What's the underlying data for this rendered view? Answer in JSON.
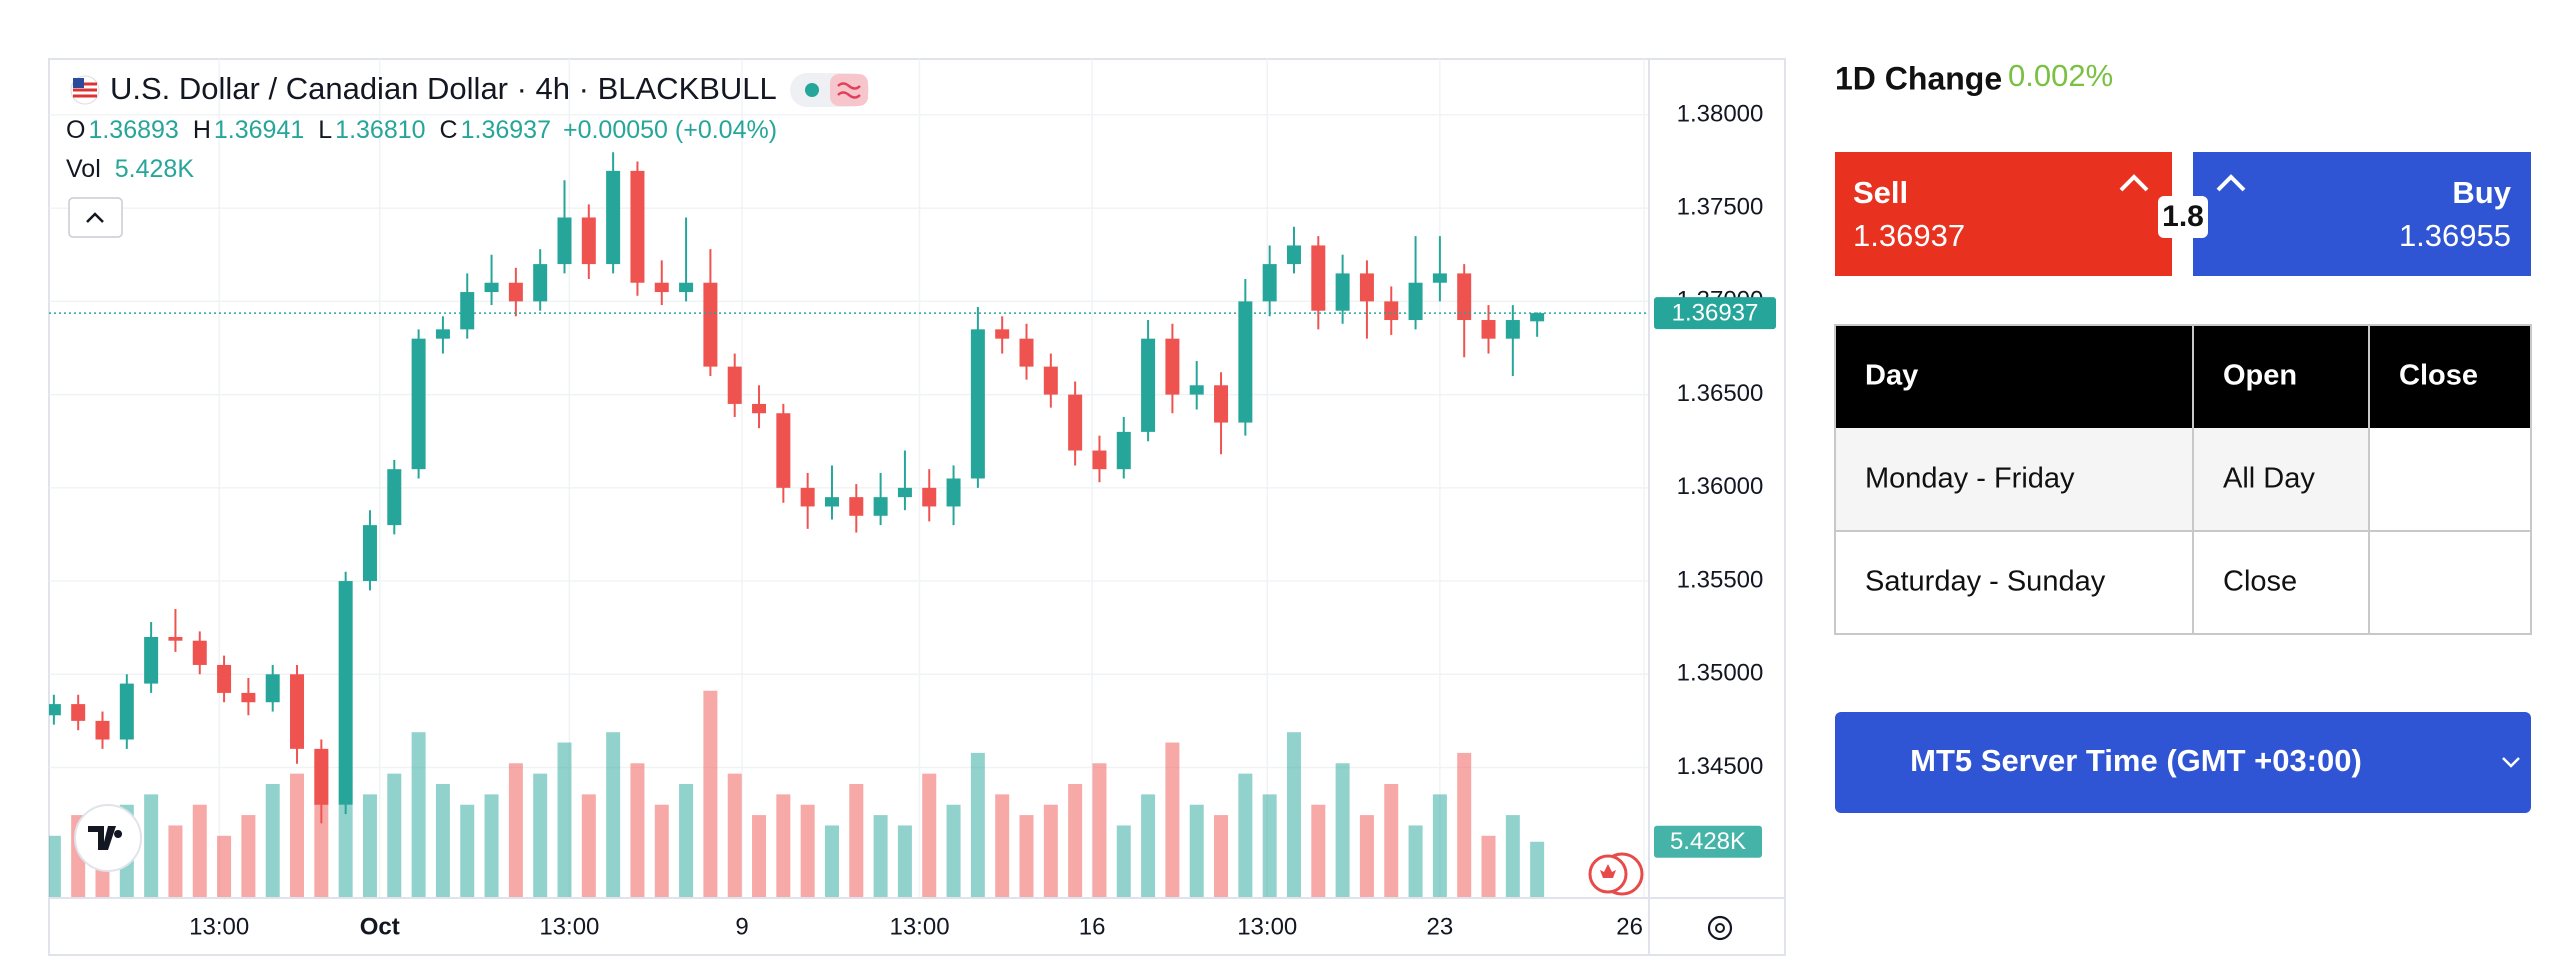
{
  "chart_data": {
    "type": "candlestick",
    "title": "U.S. Dollar / Canadian Dollar · 4h · BLACKBULL",
    "legend": {
      "open_label": "O",
      "open": "1.36893",
      "high_label": "H",
      "high": "1.36941",
      "low_label": "L",
      "low": "1.36810",
      "close_label": "C",
      "close": "1.36937",
      "change": "+0.00050 (+0.04%)"
    },
    "volume_label": "Vol",
    "volume_value": "5.428K",
    "last_price_label": "1.36937",
    "last_volume_label": "5.428K",
    "up_color": "#26a69a",
    "down_color": "#ef5350",
    "open": [
      1.3478,
      1.3484,
      1.3475,
      1.3465,
      1.3495,
      1.352,
      1.3518,
      1.3505,
      1.349,
      1.3485,
      1.35,
      1.346,
      1.343,
      1.355,
      1.358,
      1.361,
      1.368,
      1.3685,
      1.3705,
      1.371,
      1.37,
      1.372,
      1.3745,
      1.372,
      1.377,
      1.371,
      1.3705,
      1.371,
      1.3665,
      1.3645,
      1.364,
      1.36,
      1.359,
      1.3595,
      1.3585,
      1.3595,
      1.36,
      1.359,
      1.3605,
      1.3685,
      1.368,
      1.3665,
      1.365,
      1.362,
      1.361,
      1.363,
      1.368,
      1.365,
      1.3655,
      1.3635,
      1.37,
      1.372,
      1.373,
      1.3695,
      1.3715,
      1.37,
      1.369,
      1.371,
      1.3715,
      1.369,
      1.368,
      1.36893
    ],
    "high": [
      1.3489,
      1.3489,
      1.348,
      1.35,
      1.3528,
      1.3535,
      1.3523,
      1.351,
      1.3498,
      1.3505,
      1.3505,
      1.3465,
      1.3555,
      1.3588,
      1.3615,
      1.3685,
      1.3692,
      1.3715,
      1.3725,
      1.3718,
      1.3728,
      1.3765,
      1.3752,
      1.378,
      1.3775,
      1.3722,
      1.3745,
      1.3728,
      1.3672,
      1.3655,
      1.3645,
      1.3608,
      1.3612,
      1.3602,
      1.3608,
      1.362,
      1.361,
      1.3612,
      1.3697,
      1.3692,
      1.3688,
      1.3672,
      1.3657,
      1.3628,
      1.3638,
      1.369,
      1.3688,
      1.3668,
      1.3662,
      1.3712,
      1.373,
      1.374,
      1.3735,
      1.3725,
      1.3722,
      1.3708,
      1.3735,
      1.3735,
      1.372,
      1.3698,
      1.3698,
      1.36941
    ],
    "low": [
      1.3473,
      1.347,
      1.346,
      1.346,
      1.349,
      1.3512,
      1.35,
      1.3485,
      1.3478,
      1.348,
      1.3452,
      1.342,
      1.3425,
      1.3545,
      1.3575,
      1.3605,
      1.3672,
      1.368,
      1.3698,
      1.3692,
      1.3695,
      1.3715,
      1.3712,
      1.3715,
      1.3703,
      1.3698,
      1.37,
      1.366,
      1.3638,
      1.3632,
      1.3592,
      1.3578,
      1.3583,
      1.3576,
      1.358,
      1.3588,
      1.3582,
      1.358,
      1.36,
      1.3672,
      1.3658,
      1.3643,
      1.3612,
      1.3603,
      1.3605,
      1.3625,
      1.364,
      1.3642,
      1.3618,
      1.3628,
      1.3692,
      1.3715,
      1.3685,
      1.3688,
      1.368,
      1.3682,
      1.3685,
      1.37,
      1.367,
      1.3672,
      1.366,
      1.3681
    ],
    "close": [
      1.3484,
      1.3475,
      1.3465,
      1.3495,
      1.352,
      1.3518,
      1.3505,
      1.349,
      1.3485,
      1.35,
      1.346,
      1.343,
      1.355,
      1.358,
      1.361,
      1.368,
      1.3685,
      1.3705,
      1.371,
      1.37,
      1.372,
      1.3745,
      1.372,
      1.377,
      1.371,
      1.3705,
      1.371,
      1.3665,
      1.3645,
      1.364,
      1.36,
      1.359,
      1.3595,
      1.3585,
      1.3595,
      1.36,
      1.359,
      1.3605,
      1.3685,
      1.368,
      1.3665,
      1.365,
      1.362,
      1.361,
      1.363,
      1.368,
      1.365,
      1.3655,
      1.3635,
      1.37,
      1.372,
      1.373,
      1.3695,
      1.3715,
      1.37,
      1.369,
      1.371,
      1.3715,
      1.369,
      1.368,
      1.369,
      1.36937
    ],
    "volume": [
      6,
      8,
      5,
      9,
      10,
      7,
      9,
      6,
      8,
      11,
      12,
      14,
      9,
      10,
      12,
      16,
      11,
      9,
      10,
      13,
      12,
      15,
      10,
      16,
      13,
      9,
      11,
      20,
      12,
      8,
      10,
      9,
      7,
      11,
      8,
      7,
      12,
      9,
      14,
      10,
      8,
      9,
      11,
      13,
      7,
      10,
      15,
      9,
      8,
      12,
      10,
      16,
      9,
      13,
      8,
      11,
      7,
      10,
      14,
      6,
      8,
      5.428
    ],
    "xlim": [
      -0.2,
      65.6
    ],
    "xticks": [
      {
        "value": 6.8,
        "label": "13:00"
      },
      {
        "value": 13.4,
        "label": "Oct"
      },
      {
        "value": 21.2,
        "label": "13:00"
      },
      {
        "value": 28.3,
        "label": "9"
      },
      {
        "value": 35.6,
        "label": "13:00"
      },
      {
        "value": 42.7,
        "label": "16"
      },
      {
        "value": 49.9,
        "label": "13:00"
      },
      {
        "value": 57,
        "label": "23"
      },
      {
        "value": 65.4,
        "label": "26"
      }
    ],
    "ylim": [
      1.338,
      1.383
    ],
    "yticks": [
      {
        "value": 1.345,
        "label": "1.34500"
      },
      {
        "value": 1.35,
        "label": "1.35000"
      },
      {
        "value": 1.355,
        "label": "1.35500"
      },
      {
        "value": 1.36,
        "label": "1.36000"
      },
      {
        "value": 1.365,
        "label": "1.36500"
      },
      {
        "value": 1.37,
        "label": "1.37000"
      },
      {
        "value": 1.375,
        "label": "1.37500"
      },
      {
        "value": 1.38,
        "label": "1.38000"
      }
    ],
    "vlim": [
      0,
      22
    ],
    "grid": true
  },
  "panel": {
    "change_label": "1D Change",
    "change_value": "0.002%",
    "sell_label": "Sell",
    "sell_price": "1.36937",
    "spread": "1.8",
    "buy_label": "Buy",
    "buy_price": "1.36955",
    "table": {
      "header": [
        "Day",
        "Open",
        "Close"
      ],
      "rows": [
        [
          "Monday - Friday",
          "All Day"
        ],
        [
          "Saturday - Sunday",
          "Close"
        ]
      ]
    },
    "server_time": "MT5 Server Time (GMT +03:00)"
  }
}
